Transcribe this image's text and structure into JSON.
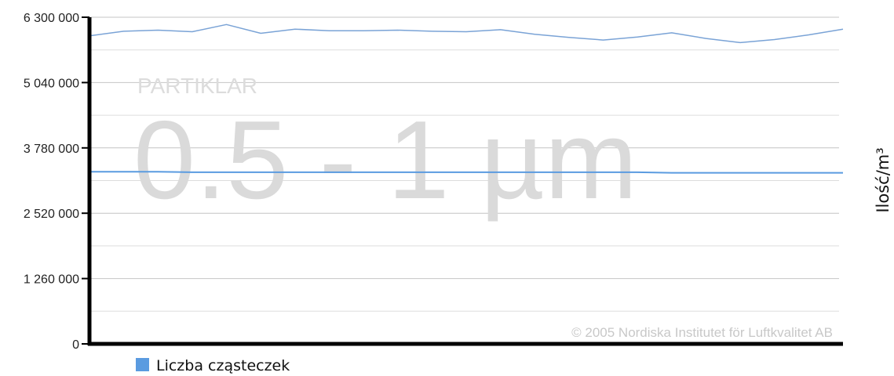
{
  "chart_data": {
    "type": "line",
    "ylabel": "Ilość/m³",
    "ylim": [
      0,
      6300000
    ],
    "y_ticks": [
      0,
      1260000,
      2520000,
      3780000,
      5040000,
      6300000
    ],
    "y_tick_labels": [
      "0",
      "1 260 000",
      "2 520 000",
      "3 780 000",
      "5 040 000",
      "6 300 000"
    ],
    "grid": true,
    "legend_position": "bottom-left",
    "legend": [
      "Liczba cząsteczek"
    ],
    "series": [
      {
        "color": "#7aa3d6",
        "values": [
          5940000,
          6030000,
          6050000,
          6020000,
          6160000,
          5990000,
          6070000,
          6040000,
          6040000,
          6050000,
          6030000,
          6020000,
          6060000,
          5970000,
          5910000,
          5860000,
          5920000,
          6000000,
          5890000,
          5810000,
          5870000,
          5960000,
          6070000
        ]
      },
      {
        "name": "Liczba cząsteczek",
        "color": "#5a9be0",
        "values": [
          3320000,
          3320000,
          3320000,
          3310000,
          3310000,
          3310000,
          3310000,
          3310000,
          3310000,
          3310000,
          3310000,
          3310000,
          3310000,
          3310000,
          3310000,
          3310000,
          3310000,
          3300000,
          3300000,
          3300000,
          3300000,
          3300000,
          3300000
        ]
      }
    ],
    "watermark": {
      "small": "PARTIKLAR",
      "big": "0.5 - 1 µm"
    },
    "copyright": "© 2005 Nordiska Institutet för Luftkvalitet AB"
  }
}
